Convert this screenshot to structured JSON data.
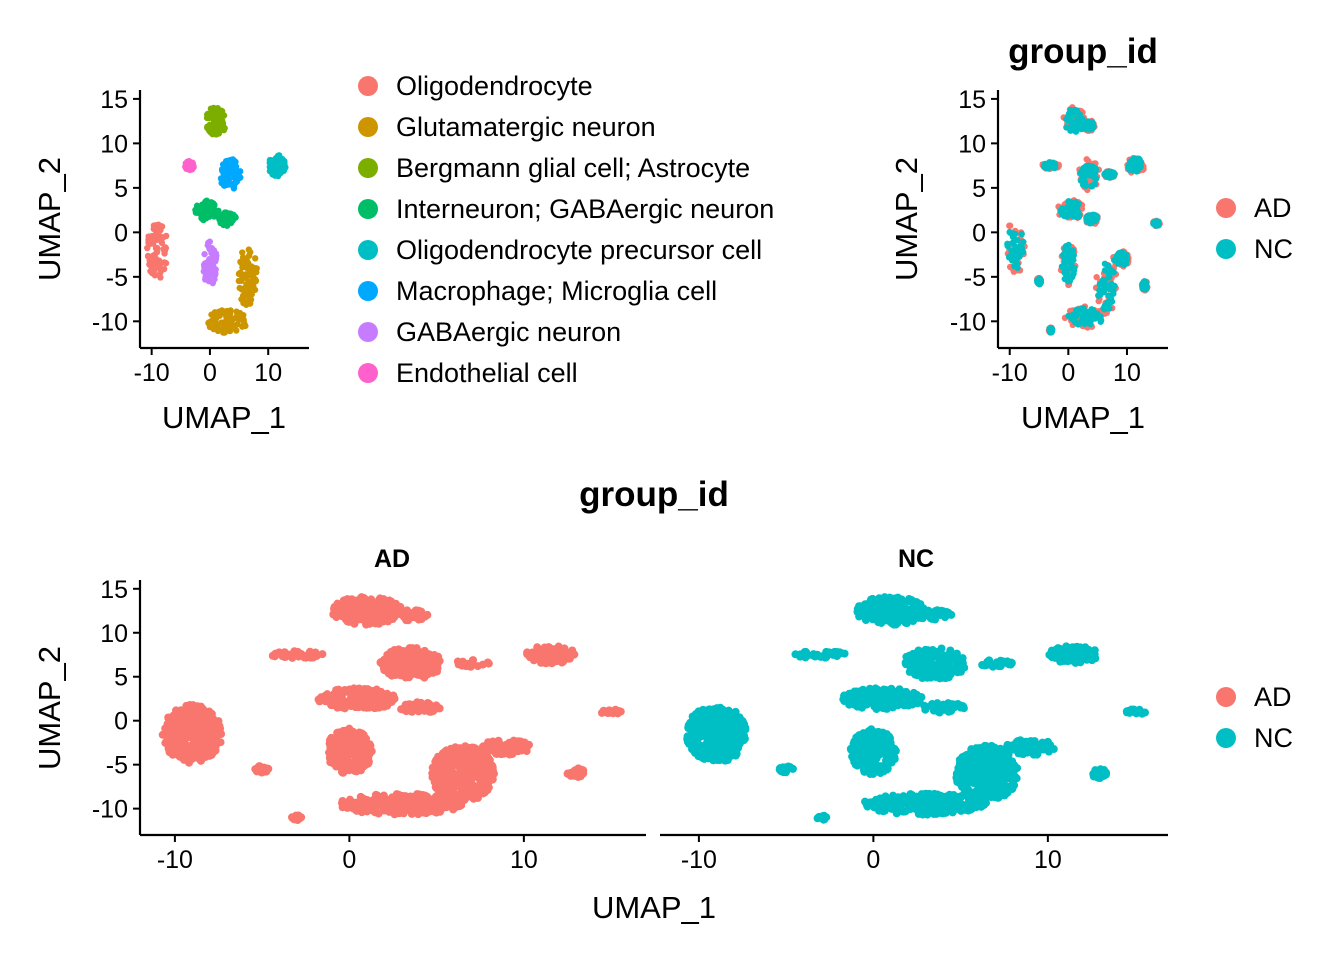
{
  "chart_data": [
    {
      "type": "scatter",
      "title": "",
      "xlabel": "UMAP_1",
      "ylabel": "UMAP_2",
      "xlim": [
        -12,
        17
      ],
      "ylim": [
        -13,
        16
      ],
      "xticks": [
        "-10",
        "0",
        "10"
      ],
      "yticks": [
        "15",
        "10",
        "5",
        "0",
        "-5",
        "-10"
      ],
      "legend_position": "right",
      "legend": [
        {
          "label": "Oligodendrocyte",
          "color": "#F8766D"
        },
        {
          "label": "Glutamatergic neuron",
          "color": "#CD9600"
        },
        {
          "label": "Bergmann glial cell; Astrocyte",
          "color": "#7CAE00"
        },
        {
          "label": "Interneuron; GABAergic neuron",
          "color": "#00BE67"
        },
        {
          "label": "Oligodendrocyte precursor cell",
          "color": "#00BFC4"
        },
        {
          "label": "Macrophage; Microglia cell",
          "color": "#00A9FF"
        },
        {
          "label": "GABAergic neuron",
          "color": "#C77CFF"
        },
        {
          "label": "Endothelial cell",
          "color": "#FF61CC"
        }
      ],
      "clusters": [
        {
          "name": "Oligodendrocyte",
          "x": -9,
          "y": -2,
          "rx": 1.8,
          "ry": 3.2
        },
        {
          "name": "Glutamatergic neuron",
          "x": 3,
          "y": -10,
          "rx": 3.5,
          "ry": 1.3
        },
        {
          "name": "Glutamatergic neuron",
          "x": 6.5,
          "y": -5,
          "rx": 1.6,
          "ry": 3.5
        },
        {
          "name": "Bergmann glial cell; Astrocyte",
          "x": 1,
          "y": 12.5,
          "rx": 1.8,
          "ry": 1.6
        },
        {
          "name": "Interneuron; GABAergic neuron",
          "x": -0.5,
          "y": 2.5,
          "rx": 2,
          "ry": 1.2
        },
        {
          "name": "Interneuron; GABAergic neuron",
          "x": 3,
          "y": 1.5,
          "rx": 1.5,
          "ry": 0.8
        },
        {
          "name": "Oligodendrocyte precursor cell",
          "x": 11.5,
          "y": 7.5,
          "rx": 1.5,
          "ry": 1.2
        },
        {
          "name": "Macrophage; Microglia cell",
          "x": 3.5,
          "y": 6.5,
          "rx": 1.8,
          "ry": 1.8
        },
        {
          "name": "GABAergic neuron",
          "x": 0,
          "y": -3.5,
          "rx": 1.2,
          "ry": 2.5
        },
        {
          "name": "Endothelial cell",
          "x": -3.5,
          "y": 7.5,
          "rx": 0.8,
          "ry": 0.5
        }
      ]
    },
    {
      "type": "scatter",
      "title": "group_id",
      "xlabel": "UMAP_1",
      "ylabel": "UMAP_2",
      "xlim": [
        -12,
        17
      ],
      "ylim": [
        -13,
        16
      ],
      "xticks": [
        "-10",
        "0",
        "10"
      ],
      "yticks": [
        "15",
        "10",
        "5",
        "0",
        "-5",
        "-10"
      ],
      "legend_position": "right",
      "legend": [
        {
          "label": "AD",
          "color": "#F8766D"
        },
        {
          "label": "NC",
          "color": "#00BFC4"
        }
      ],
      "note_series": [
        "AD",
        "NC"
      ]
    },
    {
      "type": "scatter",
      "title": "group_id",
      "facets": [
        "AD",
        "NC"
      ],
      "xlabel": "UMAP_1",
      "ylabel": "UMAP_2",
      "xlim": [
        -12,
        17
      ],
      "ylim": [
        -13,
        16
      ],
      "xticks": [
        "-10",
        "0",
        "10"
      ],
      "yticks": [
        "15",
        "10",
        "5",
        "0",
        "-5",
        "-10"
      ],
      "legend_position": "right",
      "legend": [
        {
          "label": "AD",
          "color": "#F8766D"
        },
        {
          "label": "NC",
          "color": "#00BFC4"
        }
      ],
      "clusters": [
        {
          "x": -9,
          "y": -1.5,
          "rx": 1.7,
          "ry": 3.3
        },
        {
          "x": -5,
          "y": -5.5,
          "rx": 0.4,
          "ry": 0.4
        },
        {
          "x": 1,
          "y": 12.5,
          "rx": 2,
          "ry": 1.6
        },
        {
          "x": 3.5,
          "y": 12,
          "rx": 1,
          "ry": 0.6
        },
        {
          "x": -3,
          "y": 7.5,
          "rx": 1.5,
          "ry": 0.4
        },
        {
          "x": 3.5,
          "y": 6.5,
          "rx": 1.8,
          "ry": 1.8
        },
        {
          "x": 11.5,
          "y": 7.5,
          "rx": 1.5,
          "ry": 1
        },
        {
          "x": 7,
          "y": 6.5,
          "rx": 1,
          "ry": 0.4
        },
        {
          "x": 0.5,
          "y": 2.5,
          "rx": 2.3,
          "ry": 1.2
        },
        {
          "x": 4,
          "y": 1.5,
          "rx": 1.2,
          "ry": 0.6
        },
        {
          "x": 0,
          "y": -3.5,
          "rx": 1.3,
          "ry": 2.6
        },
        {
          "x": 3,
          "y": -9.5,
          "rx": 3.6,
          "ry": 1.2
        },
        {
          "x": 6.5,
          "y": -6,
          "rx": 1.8,
          "ry": 3.2
        },
        {
          "x": 9,
          "y": -3,
          "rx": 1.4,
          "ry": 0.9
        },
        {
          "x": 13,
          "y": -6,
          "rx": 0.5,
          "ry": 0.6
        },
        {
          "x": 15,
          "y": 1,
          "rx": 0.6,
          "ry": 0.3
        },
        {
          "x": -3,
          "y": -11,
          "rx": 0.3,
          "ry": 0.3
        }
      ]
    }
  ]
}
